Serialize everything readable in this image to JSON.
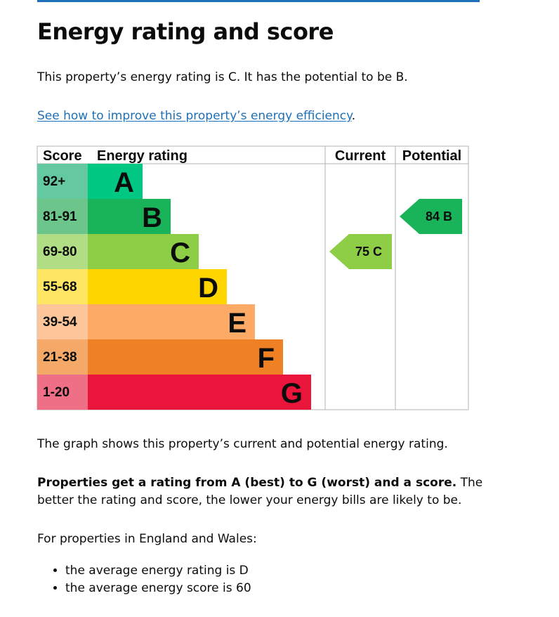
{
  "page": {
    "title": "Energy rating and score",
    "intro": "This property’s energy rating is C. It has the potential to be B.",
    "improve_link": "See how to improve this property’s energy efficiency",
    "improve_link_suffix": ".",
    "graph_note": "The graph shows this property’s current and potential energy rating.",
    "bands_note_bold": "Properties get a rating from A (best) to G (worst) and a score.",
    "bands_note_rest": " The better the rating and score, the lower your energy bills are likely to be.",
    "averages_intro": "For properties in England and Wales:",
    "averages": [
      "the average energy rating is D",
      "the average energy score is 60"
    ]
  },
  "chart_data": {
    "type": "bar",
    "headers": {
      "score": "Score",
      "rating": "Energy rating",
      "current": "Current",
      "potential": "Potential"
    },
    "bands": [
      {
        "letter": "A",
        "score": "92+",
        "band_color": "#00c781",
        "score_color": "#64c9a0"
      },
      {
        "letter": "B",
        "score": "81-91",
        "band_color": "#19b459",
        "score_color": "#6cc58a"
      },
      {
        "letter": "C",
        "score": "69-80",
        "band_color": "#8dce46",
        "score_color": "#b1de85"
      },
      {
        "letter": "D",
        "score": "55-68",
        "band_color": "#ffd500",
        "score_color": "#ffe564"
      },
      {
        "letter": "E",
        "score": "39-54",
        "band_color": "#fcaa65",
        "score_color": "#fdc69a"
      },
      {
        "letter": "F",
        "score": "21-38",
        "band_color": "#ef8023",
        "score_color": "#f4a968"
      },
      {
        "letter": "G",
        "score": "1-20",
        "band_color": "#e9153b",
        "score_color": "#ef6f87"
      }
    ],
    "current": {
      "score": 75,
      "letter": "C",
      "color": "#8dce46"
    },
    "potential": {
      "score": 84,
      "letter": "B",
      "color": "#19b459"
    }
  }
}
